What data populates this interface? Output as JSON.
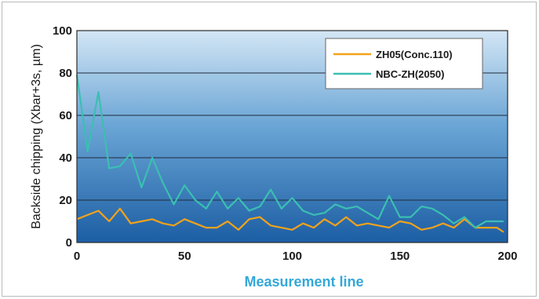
{
  "chart_data": {
    "type": "line",
    "title": "",
    "xlabel": "Measurement line",
    "ylabel": "Backside chipping (Xbar+3s, µm)",
    "xlim": [
      0,
      200
    ],
    "ylim": [
      0,
      100
    ],
    "x_ticks": [
      "0",
      "50",
      "100",
      "150",
      "200"
    ],
    "y_ticks": [
      "0",
      "20",
      "40",
      "60",
      "80",
      "100"
    ],
    "grid": "horizontal",
    "legend_position": "top-right",
    "series": [
      {
        "name": "ZH05(Conc.110)",
        "color": "#f2a21b",
        "x": [
          0,
          5,
          10,
          15,
          20,
          25,
          30,
          35,
          40,
          45,
          50,
          55,
          60,
          65,
          70,
          75,
          80,
          85,
          90,
          95,
          100,
          105,
          110,
          115,
          120,
          125,
          130,
          135,
          140,
          145,
          150,
          155,
          160,
          165,
          170,
          175,
          180,
          185,
          190,
          195,
          198
        ],
        "y": [
          11,
          13,
          15,
          10,
          16,
          9,
          10,
          11,
          9,
          8,
          11,
          9,
          7,
          7,
          10,
          6,
          11,
          12,
          8,
          7,
          6,
          9,
          7,
          11,
          8,
          12,
          8,
          9,
          8,
          7,
          10,
          9,
          6,
          7,
          9,
          7,
          11,
          7,
          7,
          7,
          5
        ]
      },
      {
        "name": "NBC-ZH(2050)",
        "color": "#3bbfb2",
        "x": [
          0,
          5,
          10,
          15,
          20,
          25,
          30,
          35,
          40,
          45,
          50,
          55,
          60,
          65,
          70,
          75,
          80,
          85,
          90,
          95,
          100,
          105,
          110,
          115,
          120,
          125,
          130,
          135,
          140,
          145,
          150,
          155,
          160,
          165,
          170,
          175,
          180,
          185,
          190,
          195,
          198
        ],
        "y": [
          79,
          43,
          71,
          35,
          36,
          42,
          26,
          40,
          28,
          18,
          27,
          20,
          16,
          24,
          16,
          21,
          15,
          17,
          25,
          16,
          21,
          15,
          13,
          14,
          18,
          16,
          17,
          14,
          11,
          22,
          12,
          12,
          17,
          16,
          13,
          9,
          12,
          7,
          10,
          10,
          10
        ]
      }
    ]
  }
}
